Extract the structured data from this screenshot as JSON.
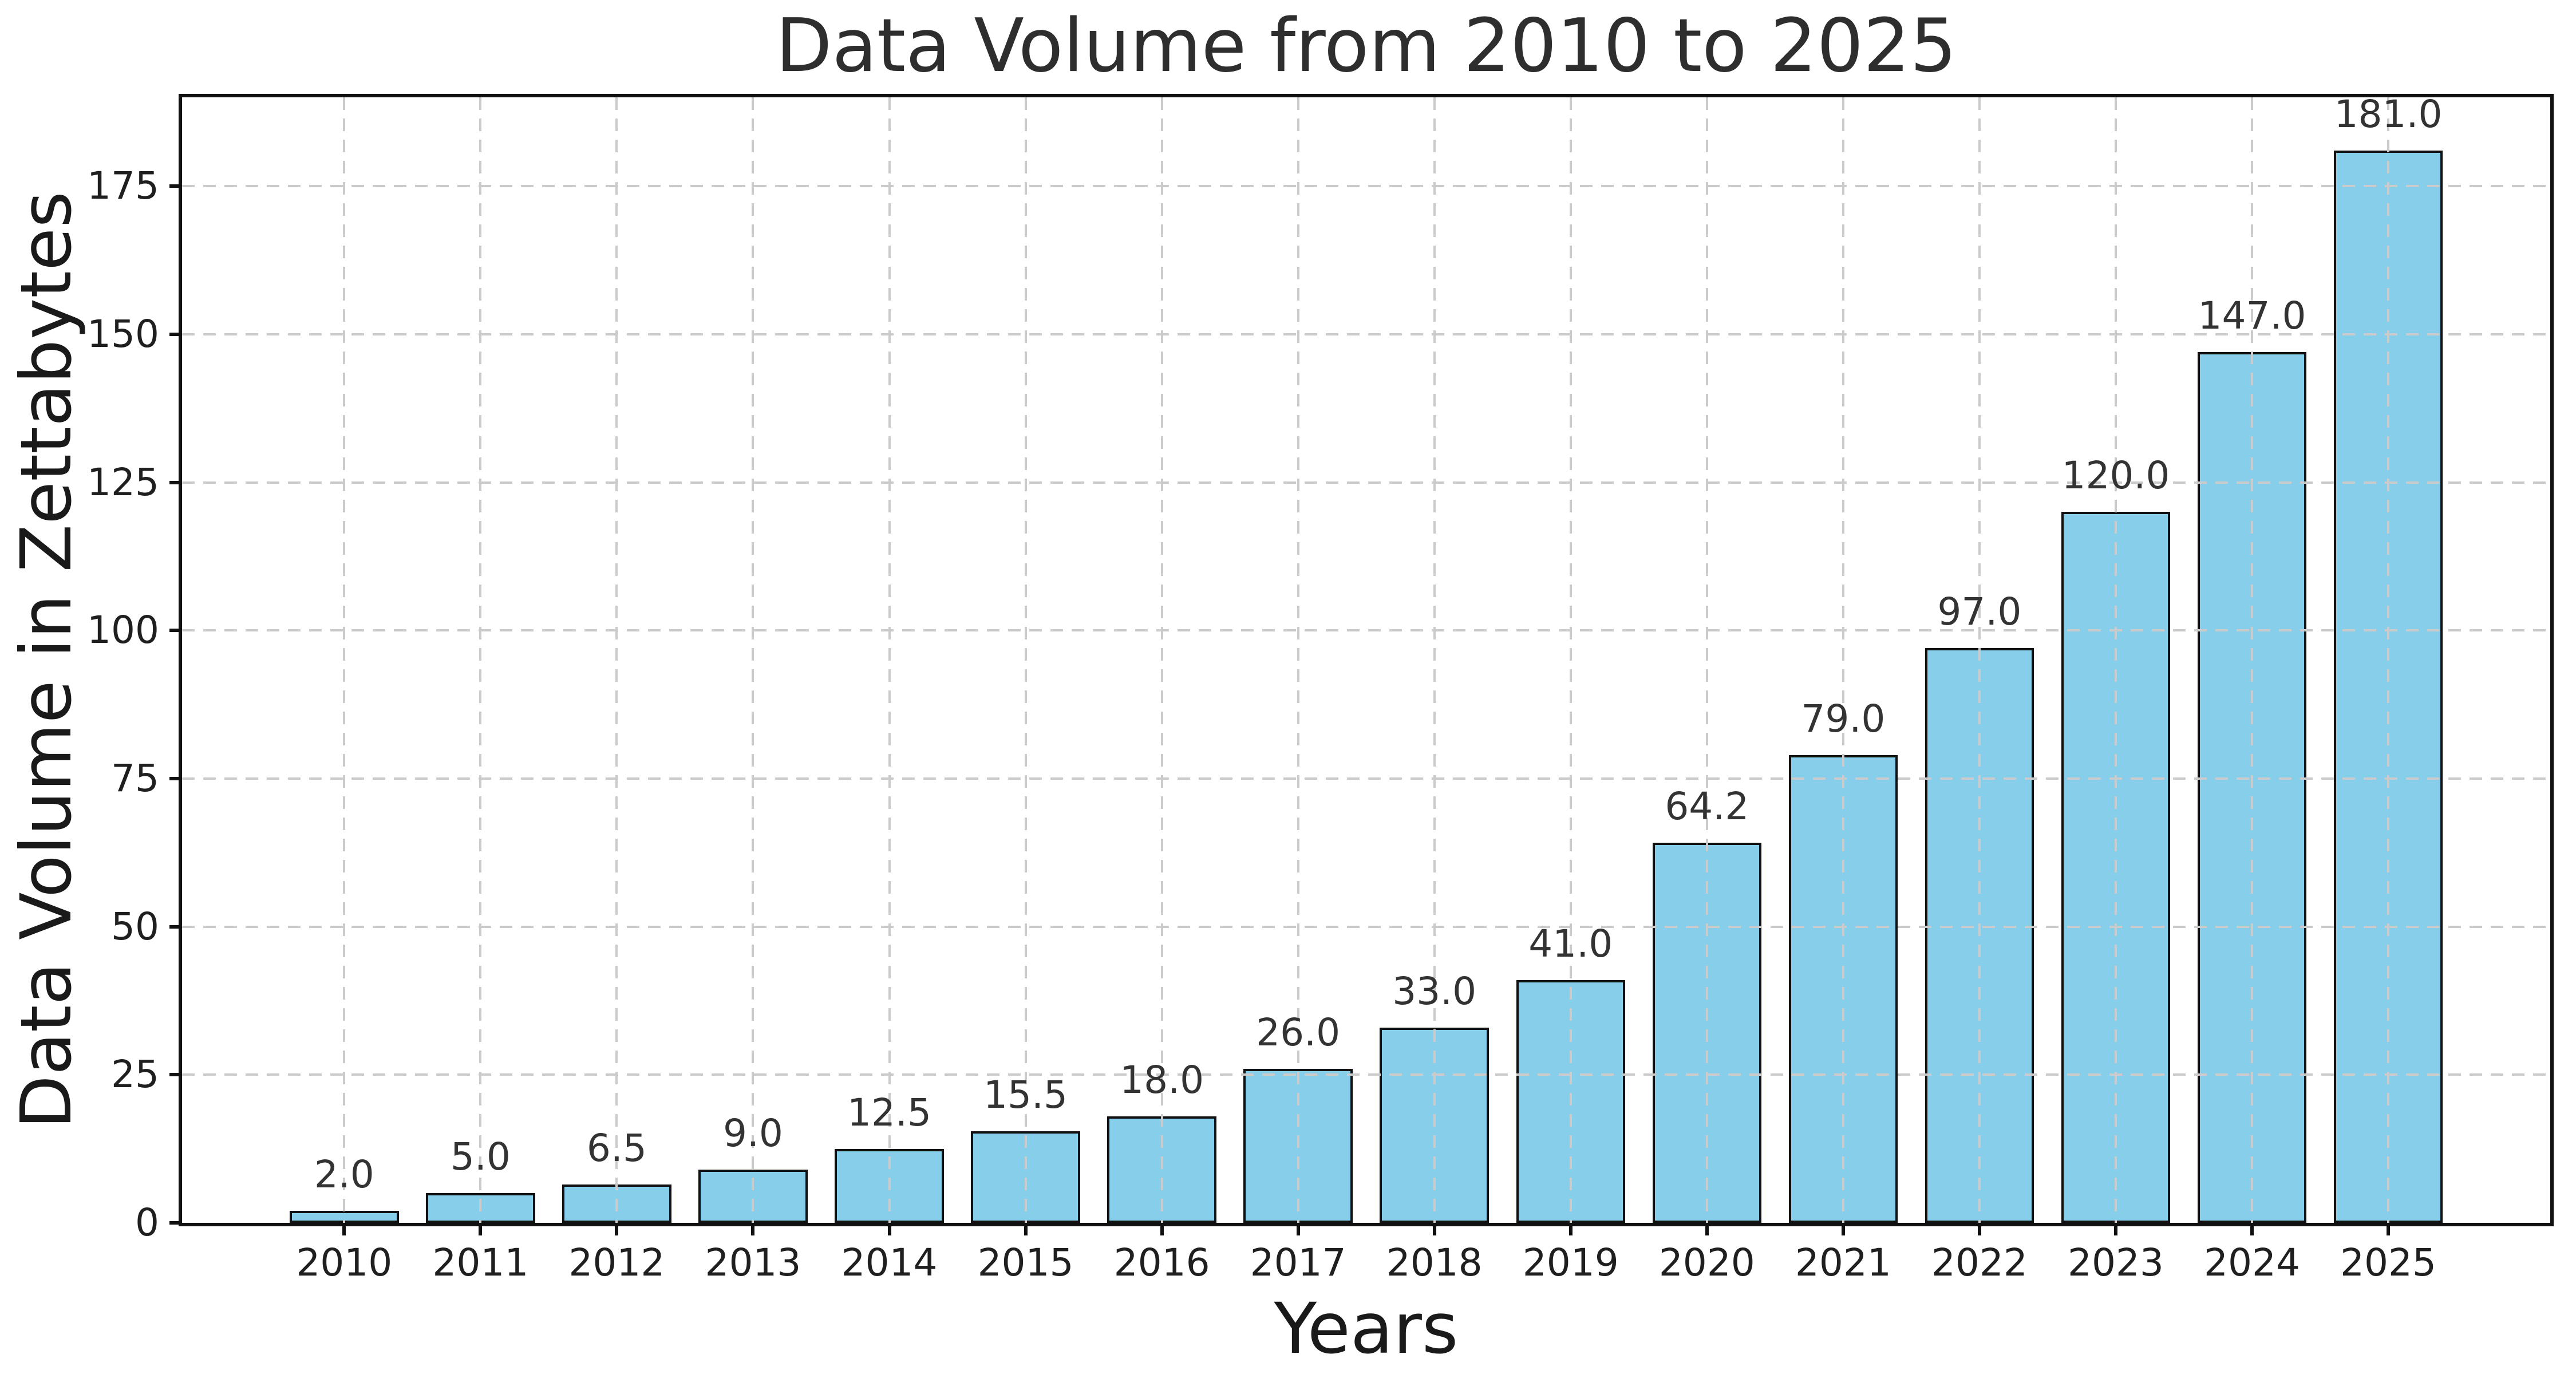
{
  "chart_data": {
    "type": "bar",
    "title": "Data Volume from 2010 to 2025",
    "xlabel": "Years",
    "ylabel": "Data Volume in Zettabytes",
    "categories": [
      "2010",
      "2011",
      "2012",
      "2013",
      "2014",
      "2015",
      "2016",
      "2017",
      "2018",
      "2019",
      "2020",
      "2021",
      "2022",
      "2023",
      "2024",
      "2025"
    ],
    "values": [
      2.0,
      5.0,
      6.5,
      9.0,
      12.5,
      15.5,
      18.0,
      26.0,
      33.0,
      41.0,
      64.2,
      79.0,
      97.0,
      120.0,
      147.0,
      181.0
    ],
    "bar_labels": [
      "2.0",
      "5.0",
      "6.5",
      "9.0",
      "12.5",
      "15.5",
      "18.0",
      "26.0",
      "33.0",
      "41.0",
      "64.2",
      "79.0",
      "97.0",
      "120.0",
      "147.0",
      "181.0"
    ],
    "yticks": [
      0,
      25,
      50,
      75,
      100,
      125,
      150,
      175
    ],
    "ylim": [
      0,
      190
    ],
    "grid": "dashed horizontal and vertical gridlines, drawn above bars",
    "legend": "none",
    "bar_color": "#87CEEB",
    "bar_edge_color": "#111111",
    "grid_color": "#cbcbcb",
    "text_color": "#2e2e2e",
    "background_color": "#ffffff"
  }
}
